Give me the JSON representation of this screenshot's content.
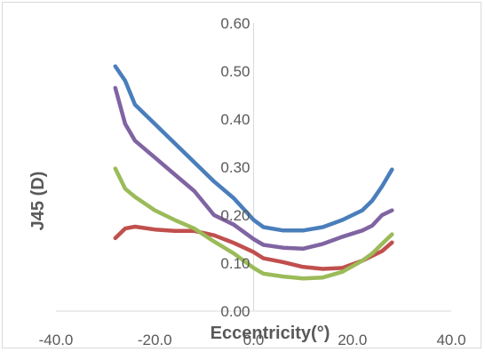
{
  "chart_data": {
    "type": "line",
    "title": "",
    "xlabel": "Eccentricity(°)",
    "ylabel": "J45 (D)",
    "xlim": [
      -40,
      40
    ],
    "ylim": [
      0,
      0.6
    ],
    "x_ticks": [
      "-40.0",
      "-20.0",
      "0.0",
      "20.0",
      "40.0"
    ],
    "y_ticks": [
      "0.00",
      "0.10",
      "0.20",
      "0.30",
      "0.40",
      "0.50",
      "0.60"
    ],
    "grid": false,
    "legend": "none",
    "series": [
      {
        "color": "#4a7ebb",
        "x": [
          -28,
          -26,
          -24,
          -20,
          -16,
          -12,
          -8,
          -4,
          0,
          2,
          6,
          10,
          14,
          18,
          22,
          24,
          26,
          28
        ],
        "y": [
          0.51,
          0.48,
          0.43,
          0.39,
          0.35,
          0.31,
          0.27,
          0.235,
          0.19,
          0.175,
          0.168,
          0.168,
          0.175,
          0.19,
          0.21,
          0.23,
          0.26,
          0.295
        ]
      },
      {
        "color": "#8064a2",
        "x": [
          -28,
          -26,
          -24,
          -20,
          -16,
          -12,
          -8,
          -4,
          0,
          2,
          6,
          10,
          14,
          18,
          22,
          24,
          26,
          28
        ],
        "y": [
          0.465,
          0.39,
          0.355,
          0.32,
          0.285,
          0.25,
          0.2,
          0.18,
          0.15,
          0.138,
          0.132,
          0.13,
          0.14,
          0.155,
          0.168,
          0.178,
          0.2,
          0.21
        ]
      },
      {
        "color": "#c0504d",
        "x": [
          -28,
          -26,
          -24,
          -20,
          -16,
          -12,
          -8,
          -4,
          0,
          2,
          6,
          10,
          14,
          18,
          22,
          24,
          26,
          28
        ],
        "y": [
          0.152,
          0.172,
          0.176,
          0.17,
          0.167,
          0.167,
          0.158,
          0.142,
          0.123,
          0.11,
          0.102,
          0.092,
          0.088,
          0.09,
          0.105,
          0.115,
          0.125,
          0.143
        ]
      },
      {
        "color": "#9bbb59",
        "x": [
          -28,
          -26,
          -24,
          -20,
          -16,
          -12,
          -8,
          -4,
          0,
          2,
          6,
          10,
          14,
          18,
          22,
          24,
          26,
          28
        ],
        "y": [
          0.297,
          0.255,
          0.238,
          0.21,
          0.19,
          0.172,
          0.145,
          0.12,
          0.09,
          0.078,
          0.072,
          0.068,
          0.07,
          0.082,
          0.105,
          0.12,
          0.14,
          0.16
        ]
      }
    ]
  }
}
